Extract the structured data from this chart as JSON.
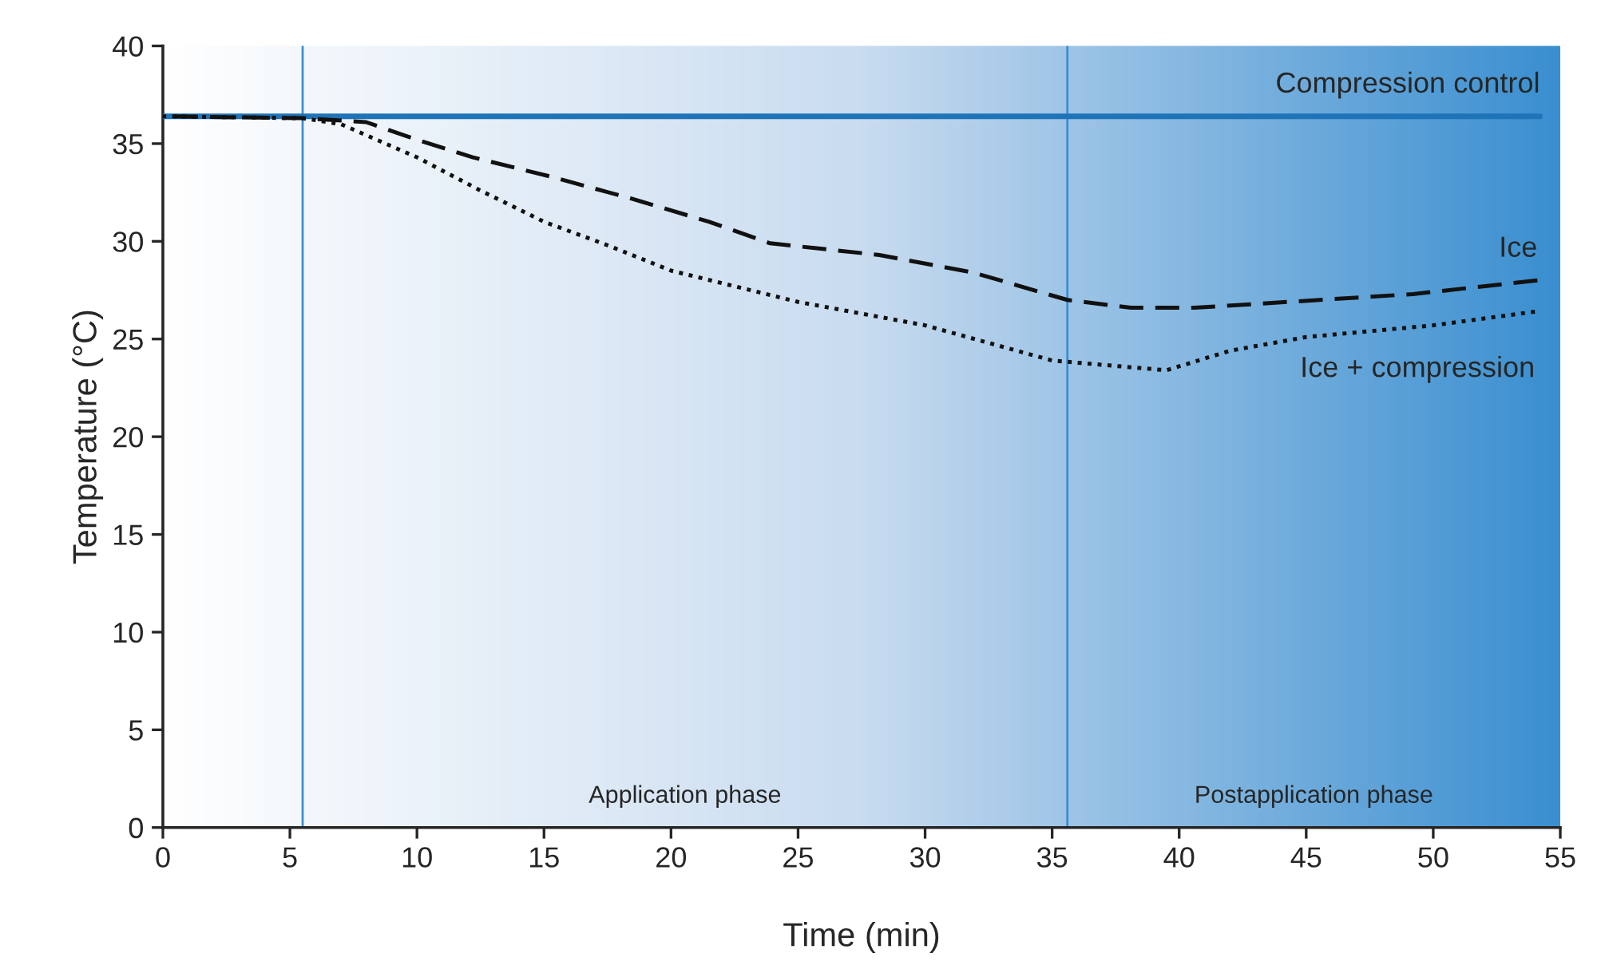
{
  "chart_data": {
    "type": "line",
    "xlabel": "Time (min)",
    "ylabel": "Temperature (°C)",
    "xlim": [
      0,
      55
    ],
    "xticks": [
      0,
      5,
      10,
      15,
      20,
      25,
      30,
      35,
      40,
      45,
      50,
      55
    ],
    "ylim": [
      0,
      40
    ],
    "yticks": [
      0,
      5,
      10,
      15,
      20,
      25,
      30,
      35,
      40
    ],
    "series": [
      {
        "name": "Compression control",
        "color": "#1f74b8",
        "line_style": "solid",
        "x": [
          0,
          54.2
        ],
        "values": [
          36.4,
          36.4
        ]
      },
      {
        "name": "Ice",
        "color": "#111111",
        "line_style": "dashed",
        "x": [
          0,
          5.5,
          8,
          10,
          12.2,
          15.3,
          18.4,
          21.5,
          23.9,
          28.2,
          31.9,
          35.6,
          38.1,
          40.6,
          44.3,
          49.2,
          54.1
        ],
        "values": [
          36.4,
          36.3,
          36.1,
          35.2,
          34.3,
          33.3,
          32.2,
          31.0,
          29.9,
          29.3,
          28.4,
          27.0,
          26.6,
          26.6,
          26.9,
          27.3,
          28.0
        ]
      },
      {
        "name": "Ice + compression",
        "color": "#111111",
        "line_style": "dotted",
        "x": [
          0,
          5.5,
          7,
          10,
          12.5,
          15,
          17.5,
          20,
          25,
          30,
          35,
          39.5,
          42,
          45,
          50,
          54
        ],
        "values": [
          36.4,
          36.3,
          36.0,
          34.3,
          32.6,
          31.0,
          29.8,
          28.5,
          26.9,
          25.7,
          23.9,
          23.4,
          24.4,
          25.1,
          25.7,
          26.4
        ]
      }
    ],
    "ref_lines": [
      {
        "axis": "x",
        "value": 5.5,
        "color": "#3a8fd0"
      },
      {
        "axis": "x",
        "value": 35.6,
        "color": "#3a8fd0"
      }
    ],
    "annotations": [
      "Application phase",
      "Postapplication phase"
    ],
    "grid": false,
    "legend": false,
    "marker": "none"
  }
}
